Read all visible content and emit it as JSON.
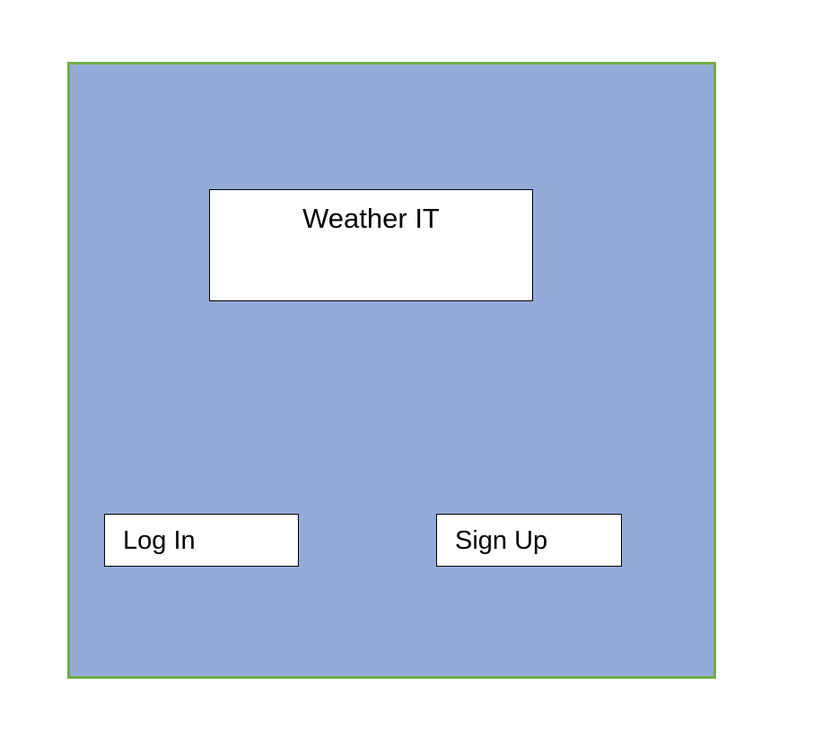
{
  "app": {
    "title": "Weather IT"
  },
  "actions": {
    "login_label": "Log In",
    "signup_label": "Sign Up"
  },
  "colors": {
    "background": "#94aad8",
    "border": "#70ad47",
    "box": "#ffffff"
  }
}
